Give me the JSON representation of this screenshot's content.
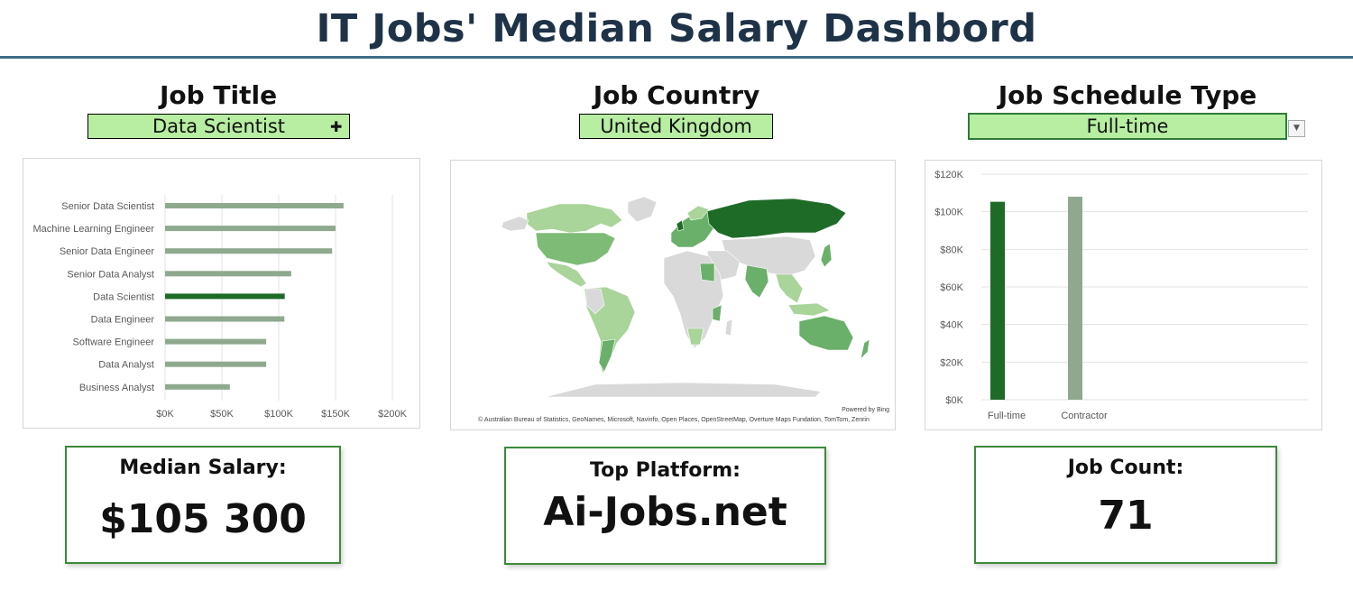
{
  "dashboard": {
    "title": "IT Jobs' Median Salary Dashbord"
  },
  "filters": {
    "job_title": {
      "heading": "Job Title",
      "value": "Data Scientist"
    },
    "job_country": {
      "heading": "Job Country",
      "value": "United Kingdom"
    },
    "job_schedule": {
      "heading": "Job Schedule Type",
      "value": "Full-time"
    }
  },
  "map": {
    "attribution": "© Australian Bureau of Statistics, GeoNames, Microsoft, Navinfo, Open Places, OpenStreetMap, Overture Maps Fundation, TomTom, Zenrin",
    "powered_by": "Powered by Bing",
    "colors": {
      "low": "#d9d9d9",
      "light": "#a9d49a",
      "mid": "#6ab06a",
      "dark": "#1e6b28"
    }
  },
  "kpis": {
    "median_salary": {
      "label": "Median Salary:",
      "value": "$105 300"
    },
    "top_platform": {
      "label": "Top Platform:",
      "value": "Ai-Jobs.net"
    },
    "job_count": {
      "label": "Job Count:",
      "value": "71"
    }
  },
  "colors": {
    "bar_default": "#8fa98f",
    "bar_selected": "#1e6b28",
    "kpi_border": "#3e8a3a",
    "slicer_fill": "#b7eea2"
  },
  "chart_data": [
    {
      "type": "bar",
      "orientation": "horizontal",
      "categories": [
        "Senior Data Scientist",
        "Machine Learning Engineer",
        "Senior Data Engineer",
        "Senior Data Analyst",
        "Data Scientist",
        "Data Engineer",
        "Software Engineer",
        "Data Analyst",
        "Business Analyst"
      ],
      "values": [
        157000,
        150000,
        147000,
        111000,
        105300,
        105000,
        89000,
        89000,
        57000
      ],
      "highlight": "Data Scientist",
      "xlim": [
        0,
        200000
      ],
      "xticks": [
        "$0K",
        "$50K",
        "$100K",
        "$150K",
        "$200K"
      ],
      "grid": true,
      "title": "",
      "xlabel": "",
      "ylabel": ""
    },
    {
      "type": "bar",
      "categories": [
        "Full-time",
        "Contractor"
      ],
      "values": [
        105300,
        108000
      ],
      "highlight": "Full-time",
      "ylim": [
        0,
        120000
      ],
      "yticks": [
        "$0K",
        "$20K",
        "$40K",
        "$60K",
        "$80K",
        "$100K",
        "$120K"
      ],
      "grid": true,
      "title": "",
      "xlabel": "",
      "ylabel": ""
    }
  ]
}
